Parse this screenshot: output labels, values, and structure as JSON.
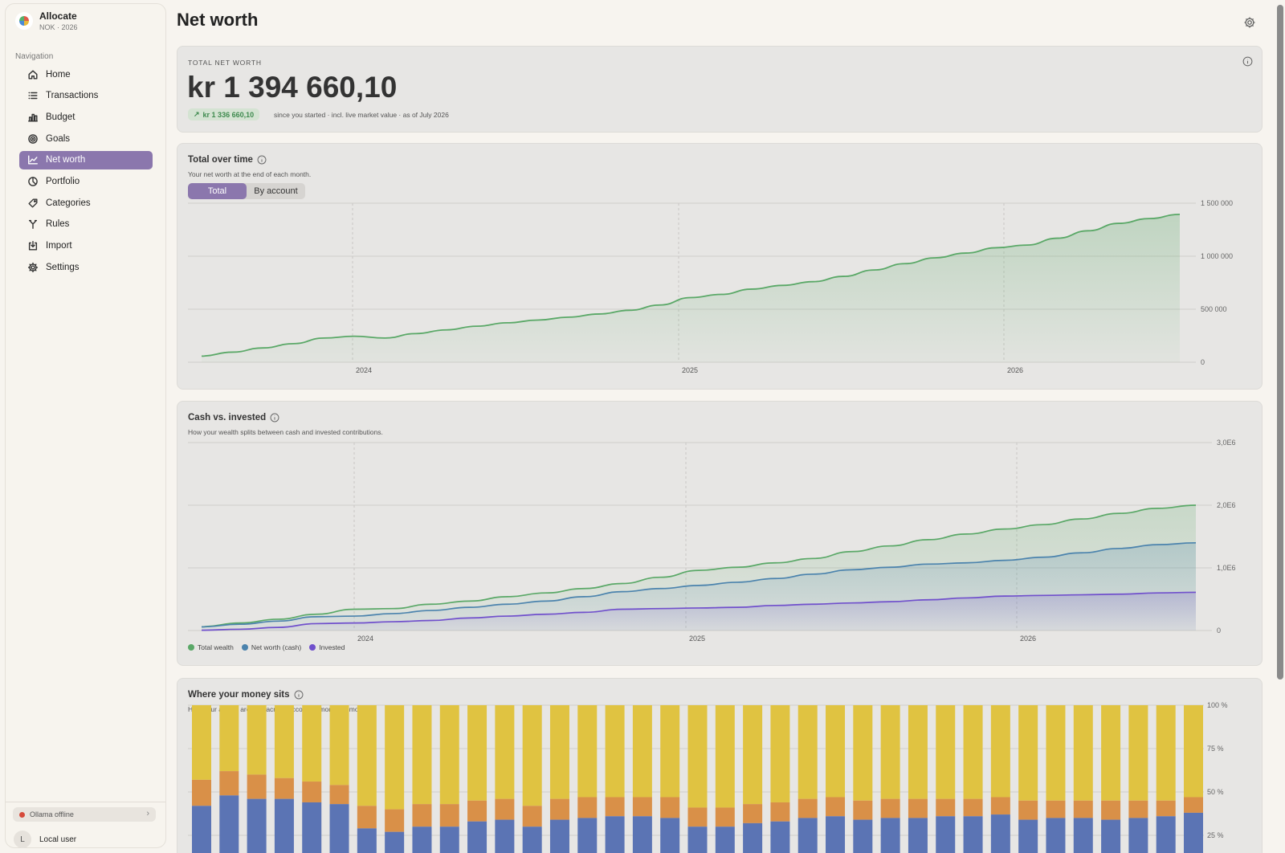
{
  "app": {
    "name": "Allocate",
    "subtitle": "NOK · 2026"
  },
  "sidebar": {
    "heading": "Navigation",
    "items": [
      {
        "label": "Home",
        "icon": "home-icon"
      },
      {
        "label": "Transactions",
        "icon": "list-icon"
      },
      {
        "label": "Budget",
        "icon": "bar-chart-icon"
      },
      {
        "label": "Goals",
        "icon": "target-icon"
      },
      {
        "label": "Net worth",
        "icon": "trend-line-icon",
        "active": true
      },
      {
        "label": "Portfolio",
        "icon": "pie-chart-icon"
      },
      {
        "label": "Categories",
        "icon": "tag-icon"
      },
      {
        "label": "Rules",
        "icon": "branch-icon"
      },
      {
        "label": "Import",
        "icon": "import-icon"
      },
      {
        "label": "Settings",
        "icon": "gear-icon"
      }
    ],
    "status": {
      "label": "Ollama offline",
      "color": "#d64a3b"
    },
    "user": {
      "initial": "L",
      "name": "Local user"
    }
  },
  "page": {
    "title": "Net worth"
  },
  "total_card": {
    "label": "TOTAL NET WORTH",
    "value": "kr 1 394 660,10",
    "gain": "kr 1 336 660,10",
    "note": "since you started · incl. live market value · as of July 2026"
  },
  "over_time": {
    "title": "Total over time",
    "subtitle": "Your net worth at the end of each month.",
    "tabs": [
      "Total",
      "By account"
    ],
    "active_tab": 0
  },
  "cash_invested": {
    "title": "Cash vs. invested",
    "subtitle": "How your wealth splits between cash and invested contributions.",
    "legend": [
      "Total wealth",
      "Net worth (cash)",
      "Invested"
    ]
  },
  "where_money": {
    "title": "Where your money sits",
    "subtitle": "How your assets are split across accounts, month by month."
  },
  "colors": {
    "accent": "#8b77ad",
    "green": "#5aa867",
    "blue": "#4b83ad",
    "purple": "#7050cc",
    "bar_blue": "#5b74b4",
    "bar_orange": "#d99048",
    "bar_yellow": "#e0c341"
  },
  "chart_data": [
    {
      "type": "area",
      "title": "Total over time",
      "x_ticks": [
        "2024",
        "2025",
        "2026"
      ],
      "y_ticks": [
        "0",
        "500 000",
        "1 000 000",
        "1 500 000"
      ],
      "ylim": [
        0,
        1500000
      ],
      "x_start": "2023-07",
      "series": [
        {
          "values": [
            58000,
            95000,
            135000,
            175000,
            228000,
            245000,
            228000,
            270000,
            305000,
            340000,
            372000,
            398000,
            425000,
            455000,
            490000,
            540000,
            610000,
            640000,
            690000,
            725000,
            760000,
            810000,
            870000,
            930000,
            985000,
            1030000,
            1080000,
            1105000,
            1170000,
            1240000,
            1310000,
            1355000,
            1394660
          ]
        }
      ]
    },
    {
      "type": "area",
      "title": "Cash vs. invested",
      "x_ticks": [
        "2024",
        "2025",
        "2026"
      ],
      "y_ticks": [
        "0",
        "1,0E6",
        "2,0E6",
        "3,0E6"
      ],
      "ylim": [
        0,
        3000000
      ],
      "x_start": "2023-07",
      "series": [
        {
          "name": "Total wealth",
          "values": [
            60000,
            120000,
            180000,
            260000,
            340000,
            350000,
            420000,
            470000,
            540000,
            600000,
            670000,
            750000,
            850000,
            960000,
            1010000,
            1080000,
            1150000,
            1260000,
            1350000,
            1450000,
            1540000,
            1620000,
            1690000,
            1780000,
            1870000,
            1950000,
            2000000
          ]
        },
        {
          "name": "Net worth (cash)",
          "values": [
            58000,
            100000,
            150000,
            220000,
            230000,
            270000,
            320000,
            370000,
            420000,
            470000,
            540000,
            620000,
            670000,
            720000,
            770000,
            830000,
            900000,
            970000,
            1010000,
            1060000,
            1080000,
            1120000,
            1170000,
            1240000,
            1310000,
            1370000,
            1400000
          ]
        },
        {
          "name": "Invested",
          "values": [
            5000,
            20000,
            50000,
            110000,
            120000,
            140000,
            160000,
            200000,
            230000,
            260000,
            290000,
            340000,
            350000,
            360000,
            370000,
            400000,
            420000,
            440000,
            460000,
            490000,
            520000,
            550000,
            560000,
            570000,
            580000,
            600000,
            610000
          ]
        }
      ]
    },
    {
      "type": "bar",
      "stacked": true,
      "title": "Where your money sits",
      "y_ticks": [
        "25 %",
        "50 %",
        "75 %",
        "100 %"
      ],
      "ylim_visible": [
        25,
        100
      ],
      "stack_order": [
        "blue",
        "orange",
        "yellow"
      ],
      "blue": [
        42,
        48,
        46,
        46,
        44,
        43,
        29,
        27,
        30,
        30,
        33,
        34,
        30,
        34,
        35,
        36,
        36,
        35,
        30,
        30,
        32,
        33,
        35,
        36,
        34,
        35,
        35,
        36,
        36,
        37,
        34,
        35,
        35,
        34,
        35,
        36,
        38
      ],
      "orange": [
        15,
        14,
        14,
        12,
        12,
        11,
        13,
        13,
        13,
        13,
        12,
        12,
        12,
        12,
        12,
        11,
        11,
        12,
        11,
        11,
        11,
        11,
        11,
        11,
        11,
        11,
        11,
        10,
        10,
        10,
        11,
        10,
        10,
        11,
        10,
        9,
        9
      ]
    }
  ]
}
